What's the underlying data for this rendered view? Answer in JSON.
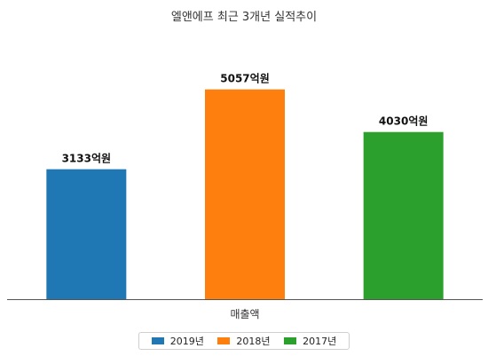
{
  "chart_data": {
    "type": "bar",
    "title": "엘앤에프 최근 3개년 실적추이",
    "xlabel": "매출액",
    "ylabel": "",
    "ylim": [
      0,
      5800
    ],
    "grid": false,
    "legend_position": "bottom-center",
    "series": [
      {
        "name": "2019년",
        "value": 3133,
        "label": "3133억원",
        "color": "#1f77b4"
      },
      {
        "name": "2018년",
        "value": 5057,
        "label": "5057억원",
        "color": "#ff7f0e"
      },
      {
        "name": "2017년",
        "value": 4030,
        "label": "4030억원",
        "color": "#2ca02c"
      }
    ]
  }
}
